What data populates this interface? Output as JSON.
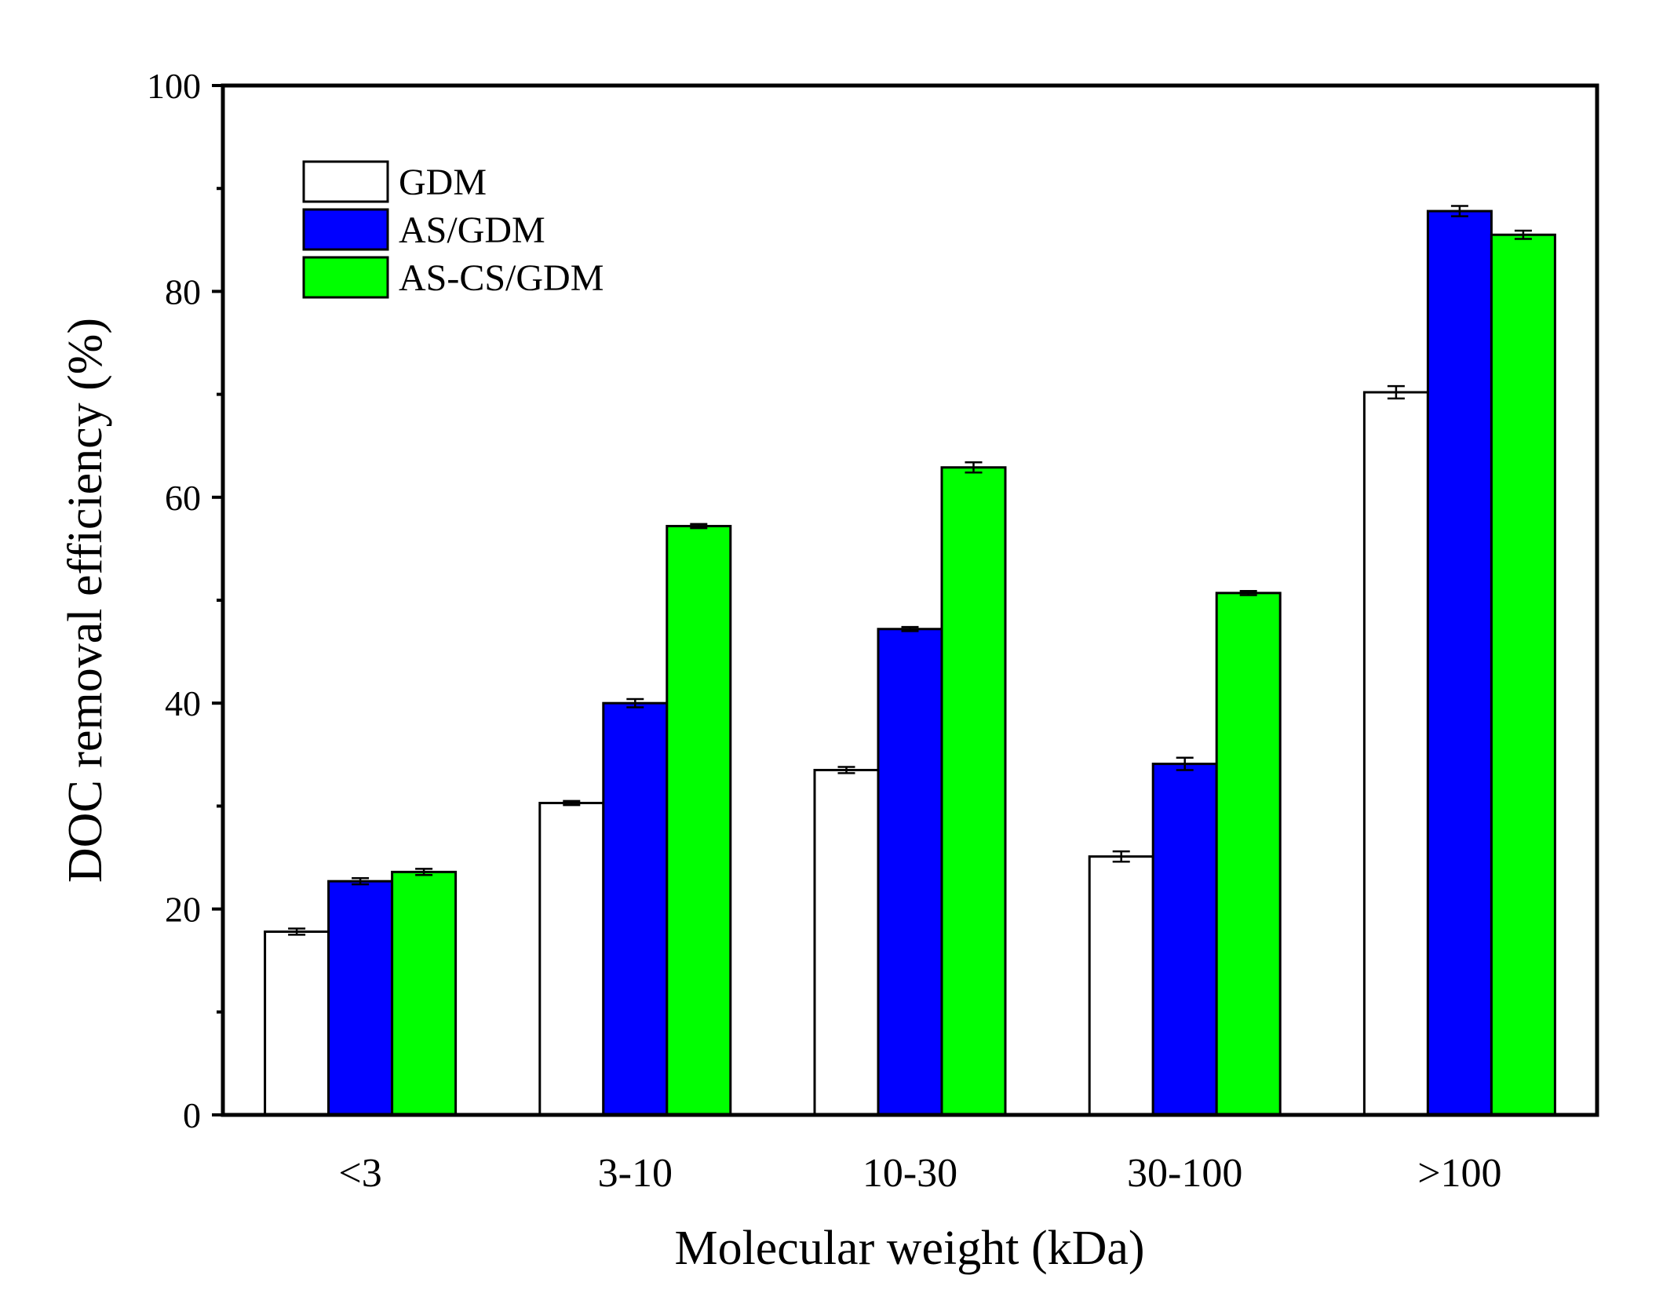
{
  "chart_data": {
    "type": "bar",
    "title": "",
    "xlabel": "Molecular weight (kDa)",
    "ylabel": "DOC removal efficiency (%)",
    "ylim": [
      0,
      100
    ],
    "yticks": [
      0,
      20,
      40,
      60,
      80,
      100
    ],
    "ytick_labels": [
      "0",
      "20",
      "40",
      "60",
      "80",
      "100"
    ],
    "categories": [
      "<3",
      "3-10",
      "10-30",
      "30-100",
      ">100"
    ],
    "legend_position": "top-left",
    "grid": false,
    "series": [
      {
        "name": "GDM",
        "color": "#ffffff",
        "values": [
          17.8,
          30.3,
          33.5,
          25.1,
          70.2
        ],
        "errors": [
          0.3,
          0.2,
          0.3,
          0.5,
          0.6
        ]
      },
      {
        "name": "AS/GDM",
        "color": "#0000ff",
        "values": [
          22.7,
          40.0,
          47.2,
          34.1,
          87.8
        ],
        "errors": [
          0.3,
          0.4,
          0.2,
          0.6,
          0.5
        ]
      },
      {
        "name": "AS-CS/GDM",
        "color": "#00ff00",
        "values": [
          23.6,
          57.2,
          62.9,
          50.7,
          85.5
        ],
        "errors": [
          0.3,
          0.2,
          0.5,
          0.2,
          0.4
        ]
      }
    ]
  }
}
